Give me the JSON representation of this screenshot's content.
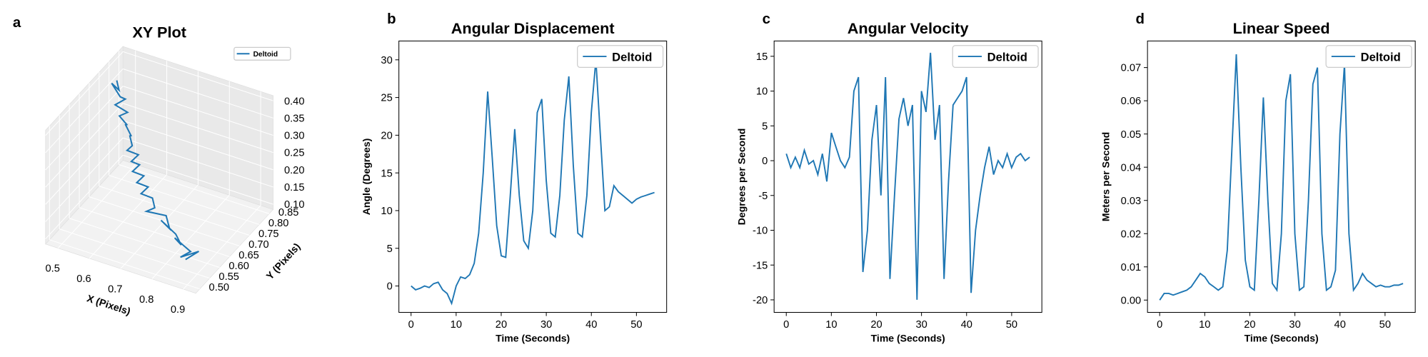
{
  "chart_data": [
    {
      "type": "line3d",
      "panel_label": "a",
      "title": "XY Plot",
      "xlabel": "X (Pixels)",
      "ylabel": "Y (Pixels)",
      "xlim": [
        0.46,
        0.94
      ],
      "ylim": [
        0.48,
        0.87
      ],
      "zlim": [
        0.085,
        0.415
      ],
      "xticks": [
        0.5,
        0.6,
        0.7,
        0.8,
        0.9
      ],
      "yticks": [
        {
          "value": 0.5,
          "label": "0.50"
        },
        0.55,
        {
          "value": 0.6,
          "label": "0.60"
        },
        0.65,
        {
          "value": 0.7,
          "label": "0.70"
        },
        0.75,
        {
          "value": 0.8,
          "label": "0.80"
        },
        0.85
      ],
      "zticks": [
        {
          "value": 0.1,
          "label": "0.10"
        },
        0.15,
        {
          "value": 0.2,
          "label": "0.20"
        },
        0.25,
        {
          "value": 0.3,
          "label": "0.30"
        },
        0.35,
        {
          "value": 0.4,
          "label": "0.40"
        }
      ],
      "grid": true,
      "legend": "upper right",
      "series": [
        {
          "name": "Deltoid",
          "color": "#1f77b4",
          "x": [
            0.51,
            0.53,
            0.5,
            0.54,
            0.55,
            0.53,
            0.57,
            0.55,
            0.58,
            0.57,
            0.6,
            0.59,
            0.61,
            0.6,
            0.63,
            0.62,
            0.64,
            0.63,
            0.66,
            0.65,
            0.68,
            0.67,
            0.7,
            0.72,
            0.7,
            0.75,
            0.78,
            0.74,
            0.8,
            0.83,
            0.79,
            0.86,
            0.84,
            0.88,
            0.85
          ],
          "y": [
            0.76,
            0.74,
            0.75,
            0.73,
            0.74,
            0.72,
            0.72,
            0.71,
            0.7,
            0.71,
            0.69,
            0.7,
            0.68,
            0.67,
            0.68,
            0.66,
            0.67,
            0.65,
            0.66,
            0.64,
            0.65,
            0.63,
            0.64,
            0.62,
            0.61,
            0.63,
            0.6,
            0.62,
            0.6,
            0.58,
            0.61,
            0.58,
            0.56,
            0.59,
            0.57
          ],
          "z": [
            0.4,
            0.39,
            0.395,
            0.38,
            0.37,
            0.36,
            0.35,
            0.34,
            0.33,
            0.32,
            0.31,
            0.3,
            0.29,
            0.28,
            0.27,
            0.26,
            0.25,
            0.24,
            0.23,
            0.22,
            0.21,
            0.2,
            0.19,
            0.18,
            0.17,
            0.16,
            0.15,
            0.15,
            0.14,
            0.13,
            0.12,
            0.12,
            0.11,
            0.12,
            0.1
          ]
        }
      ]
    },
    {
      "type": "line",
      "panel_label": "b",
      "title": "Angular Displacement",
      "xlabel": "Time (Seconds)",
      "ylabel": "Angle (Degrees)",
      "xlim": [
        -2.7,
        56.7
      ],
      "ylim": [
        -3.5,
        32.5
      ],
      "xticks": [
        0,
        10,
        20,
        30,
        40,
        50
      ],
      "yticks": [
        0,
        5,
        10,
        15,
        20,
        25,
        30
      ],
      "legend": "upper right",
      "x": [
        0,
        1,
        2,
        3,
        4,
        5,
        6,
        7,
        8,
        9,
        10,
        11,
        12,
        13,
        14,
        15,
        16,
        17,
        18,
        19,
        20,
        21,
        22,
        23,
        24,
        25,
        26,
        27,
        28,
        29,
        30,
        31,
        32,
        33,
        34,
        35,
        36,
        37,
        38,
        39,
        40,
        41,
        42,
        43,
        44,
        45,
        46,
        47,
        48,
        49,
        50,
        51,
        52,
        53,
        54
      ],
      "series": [
        {
          "name": "Deltoid",
          "color": "#1f77b4",
          "values": [
            0,
            -0.5,
            -0.3,
            0,
            -0.2,
            0.3,
            0.5,
            -0.5,
            -1,
            -2.3,
            0,
            1.2,
            1,
            1.5,
            3,
            7,
            15,
            25.8,
            17,
            8,
            4,
            3.8,
            12,
            20.8,
            12,
            6,
            5,
            10,
            23,
            24.8,
            14,
            7,
            6.5,
            12,
            22,
            27.8,
            16,
            7,
            6.5,
            12,
            23,
            30,
            20,
            10,
            10.5,
            13.3,
            12.5,
            12,
            11.5,
            11,
            11.5,
            11.8,
            12,
            12.2,
            12.4
          ]
        }
      ]
    },
    {
      "type": "line",
      "panel_label": "c",
      "title": "Angular Velocity",
      "xlabel": "Time (Seconds)",
      "ylabel": "Degrees per Second",
      "xlim": [
        -2.7,
        56.7
      ],
      "ylim": [
        -21.8,
        17.2
      ],
      "xticks": [
        0,
        10,
        20,
        30,
        40,
        50
      ],
      "yticks": [
        -20,
        -15,
        -10,
        -5,
        0,
        5,
        10,
        15
      ],
      "legend": "upper right",
      "x": [
        0,
        1,
        2,
        3,
        4,
        5,
        6,
        7,
        8,
        9,
        10,
        11,
        12,
        13,
        14,
        15,
        16,
        17,
        18,
        19,
        20,
        21,
        22,
        23,
        24,
        25,
        26,
        27,
        28,
        29,
        30,
        31,
        32,
        33,
        34,
        35,
        36,
        37,
        38,
        39,
        40,
        41,
        42,
        43,
        44,
        45,
        46,
        47,
        48,
        49,
        50,
        51,
        52,
        53,
        54
      ],
      "series": [
        {
          "name": "Deltoid",
          "color": "#1f77b4",
          "values": [
            1,
            -1,
            0.5,
            -1,
            1.5,
            -0.5,
            0,
            -2,
            1,
            -3,
            4,
            2,
            0,
            -1,
            0.5,
            10,
            12,
            -16,
            -10,
            3,
            8,
            -5,
            12,
            -17,
            -5,
            6,
            9,
            5,
            8,
            -20,
            10,
            7,
            15.5,
            3,
            8,
            -17,
            -3,
            8,
            9,
            10,
            12,
            -19,
            -10,
            -5,
            -1,
            2,
            -2,
            0,
            -1,
            1,
            -1,
            0.5,
            1,
            0,
            0.5
          ]
        }
      ]
    },
    {
      "type": "line",
      "panel_label": "d",
      "title": "Linear Speed",
      "xlabel": "Time (Seconds)",
      "ylabel": "Meters per Second",
      "xlim": [
        -2.7,
        56.7
      ],
      "ylim": [
        -0.0037,
        0.078
      ],
      "xticks": [
        0,
        10,
        20,
        30,
        40,
        50
      ],
      "yticks": [
        {
          "value": 0,
          "label": "0.00"
        },
        0.01,
        0.02,
        0.03,
        0.04,
        0.05,
        0.06,
        0.07
      ],
      "legend": "upper right",
      "x": [
        0,
        1,
        2,
        3,
        4,
        5,
        6,
        7,
        8,
        9,
        10,
        11,
        12,
        13,
        14,
        15,
        16,
        17,
        18,
        19,
        20,
        21,
        22,
        23,
        24,
        25,
        26,
        27,
        28,
        29,
        30,
        31,
        32,
        33,
        34,
        35,
        36,
        37,
        38,
        39,
        40,
        41,
        42,
        43,
        44,
        45,
        46,
        47,
        48,
        49,
        50,
        51,
        52,
        53,
        54
      ],
      "series": [
        {
          "name": "Deltoid",
          "color": "#1f77b4",
          "values": [
            0,
            0.002,
            0.002,
            0.0015,
            0.002,
            0.0025,
            0.003,
            0.004,
            0.006,
            0.008,
            0.007,
            0.005,
            0.004,
            0.003,
            0.004,
            0.015,
            0.045,
            0.074,
            0.04,
            0.012,
            0.004,
            0.003,
            0.03,
            0.061,
            0.03,
            0.005,
            0.003,
            0.02,
            0.06,
            0.068,
            0.02,
            0.003,
            0.004,
            0.03,
            0.065,
            0.07,
            0.02,
            0.003,
            0.004,
            0.009,
            0.05,
            0.071,
            0.02,
            0.003,
            0.005,
            0.008,
            0.006,
            0.005,
            0.004,
            0.0045,
            0.004,
            0.004,
            0.0045,
            0.0045,
            0.005
          ]
        }
      ]
    }
  ]
}
